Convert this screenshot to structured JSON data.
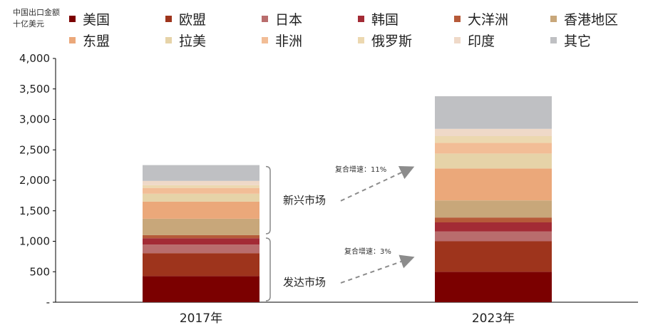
{
  "unit_label": [
    "中国出口金额",
    "十亿美元"
  ],
  "legend": [
    {
      "name": "美国",
      "color": "#7b0000"
    },
    {
      "name": "欧盟",
      "color": "#9e341c"
    },
    {
      "name": "日本",
      "color": "#b96d6d"
    },
    {
      "name": "韩国",
      "color": "#a32b35"
    },
    {
      "name": "大洋洲",
      "color": "#b65a39"
    },
    {
      "name": "香港地区",
      "color": "#c8a77a"
    },
    {
      "name": "东盟",
      "color": "#eba87a"
    },
    {
      "name": "拉美",
      "color": "#e6d3a8"
    },
    {
      "name": "非洲",
      "color": "#f2bd96"
    },
    {
      "name": "俄罗斯",
      "color": "#ecd8b0"
    },
    {
      "name": "印度",
      "color": "#efd9c8"
    },
    {
      "name": "其它",
      "color": "#bfc0c3"
    }
  ],
  "chart_data": {
    "type": "bar",
    "stacked": true,
    "categories": [
      "2017年",
      "2023年"
    ],
    "ylim": [
      0,
      4000
    ],
    "yticks": [
      0,
      500,
      1000,
      1500,
      2000,
      2500,
      3000,
      3500,
      4000
    ],
    "ytick_labels": [
      "-",
      "500",
      "1,000",
      "1,500",
      "2,000",
      "2,500",
      "3,000",
      "3,500",
      "4,000"
    ],
    "series": [
      {
        "name": "美国",
        "values": [
          430,
          500
        ]
      },
      {
        "name": "欧盟",
        "values": [
          375,
          500
        ]
      },
      {
        "name": "日本",
        "values": [
          140,
          160
        ]
      },
      {
        "name": "韩国",
        "values": [
          105,
          150
        ]
      },
      {
        "name": "大洋洲",
        "values": [
          50,
          80
        ]
      },
      {
        "name": "香港地区",
        "values": [
          270,
          280
        ]
      },
      {
        "name": "东盟",
        "values": [
          280,
          525
        ]
      },
      {
        "name": "拉美",
        "values": [
          130,
          245
        ]
      },
      {
        "name": "非洲",
        "values": [
          95,
          175
        ]
      },
      {
        "name": "俄罗斯",
        "values": [
          45,
          110
        ]
      },
      {
        "name": "印度",
        "values": [
          70,
          120
        ]
      },
      {
        "name": "其它",
        "values": [
          260,
          535
        ]
      }
    ],
    "annotations": [
      {
        "group": "新兴市场",
        "growth_label": "复合增速：11%"
      },
      {
        "group": "发达市场",
        "growth_label": "复合增速：3%"
      }
    ]
  }
}
